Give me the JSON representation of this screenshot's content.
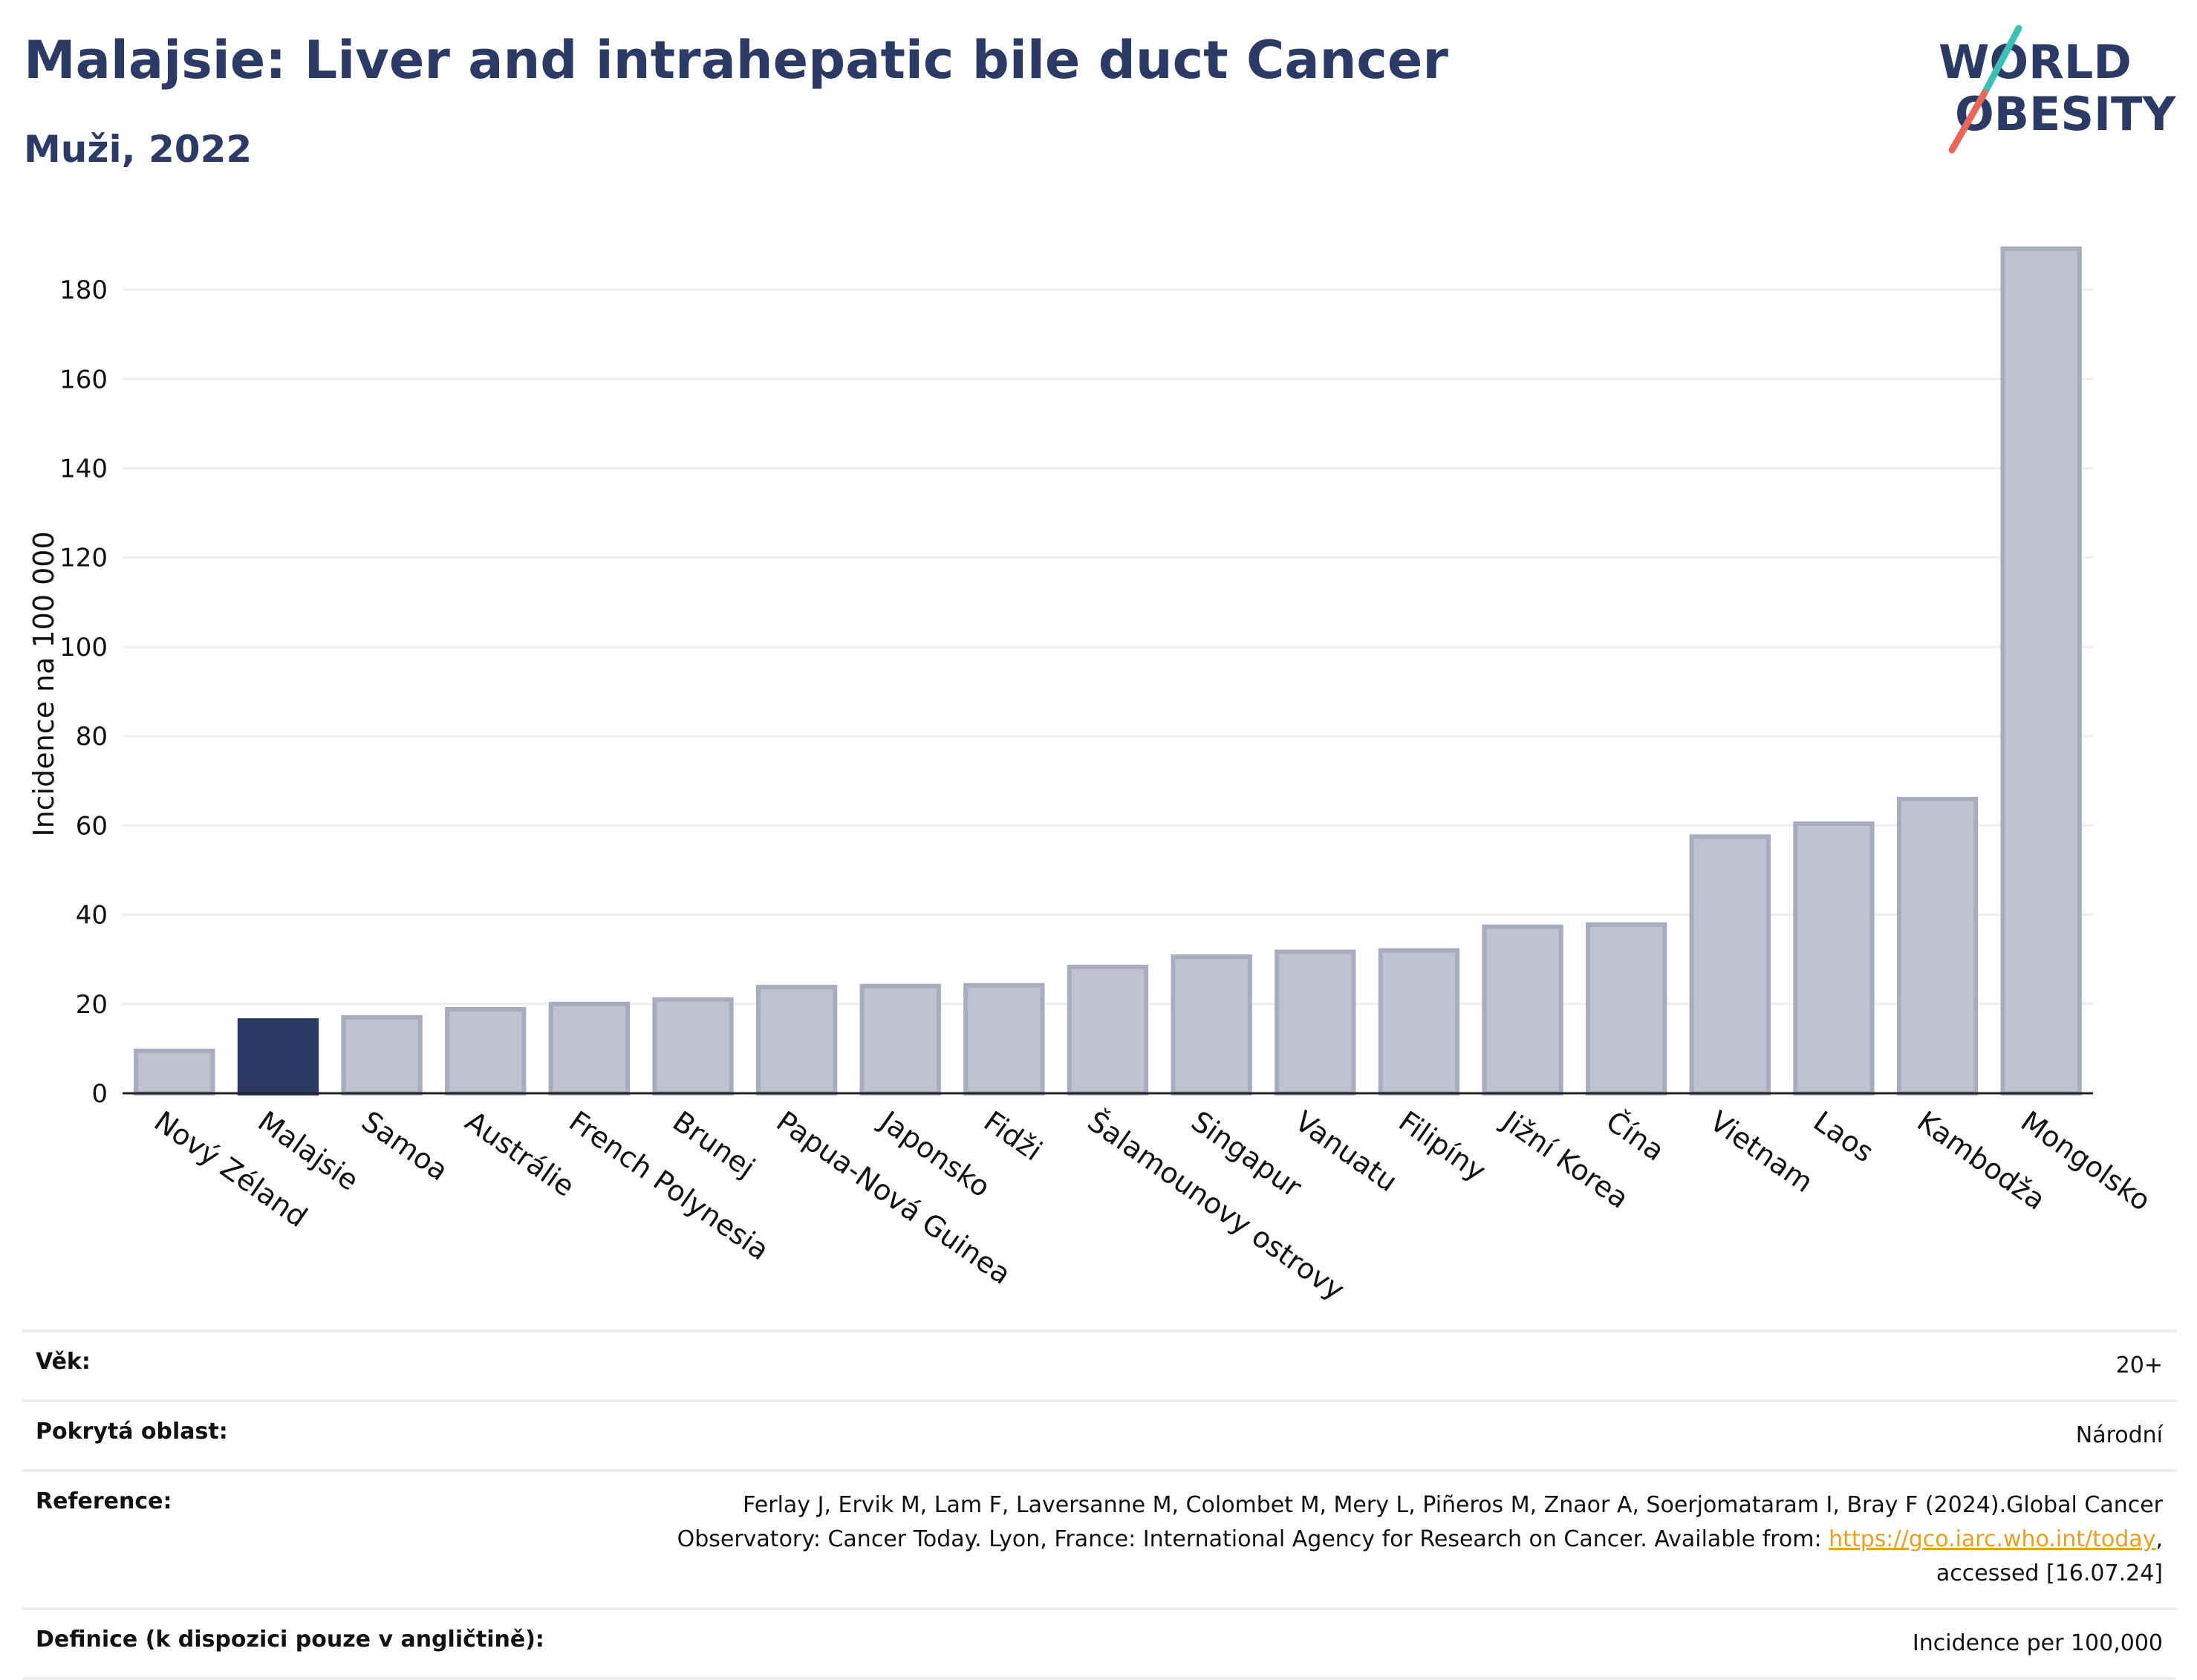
{
  "header": {
    "title": "Malajsie: Liver and intrahepatic bile duct Cancer",
    "subtitle": "Muži, 2022"
  },
  "logo": {
    "line1": "WORLD",
    "line2": "OBESITY",
    "accent_teal": "#3bbfb6",
    "accent_red": "#e8675a",
    "text_color": "#2c3a66"
  },
  "colors": {
    "highlight_bar": "#2c3a66",
    "bar_fill": "#bfc3d0",
    "bar_stroke": "#a7acbf",
    "grid": "#eceef2"
  },
  "chart_data": {
    "type": "bar",
    "title": "Malajsie: Liver and intrahepatic bile duct Cancer",
    "subtitle": "Muži, 2022",
    "ylabel": "Incidence na 100 000",
    "xlabel": "",
    "ylim": [
      0,
      190
    ],
    "yticks": [
      0,
      20,
      40,
      60,
      80,
      100,
      120,
      140,
      160,
      180
    ],
    "grid": true,
    "highlight": "Malajsie",
    "categories": [
      "Nový Zéland",
      "Malajsie",
      "Samoa",
      "Austrálie",
      "French Polynesia",
      "Brunej",
      "Papua-Nová Guinea",
      "Japonsko",
      "Fidži",
      "Šalamounovy ostrovy",
      "Singapur",
      "Vanuatu",
      "Filipíny",
      "Jižní Korea",
      "Čína",
      "Vietnam",
      "Laos",
      "Kambodža",
      "Mongolsko"
    ],
    "values": [
      9.5,
      16.3,
      17.0,
      18.8,
      20.0,
      21.0,
      23.8,
      24.0,
      24.2,
      28.3,
      30.6,
      31.7,
      32.0,
      37.3,
      37.8,
      57.5,
      60.4,
      65.9,
      189.2
    ]
  },
  "meta": {
    "age_label": "Věk:",
    "age_value": "20+",
    "coverage_label": "Pokrytá oblast:",
    "coverage_value": "Národní",
    "reference_label": "Reference:",
    "reference_text_1": "Ferlay J, Ervik M, Lam F, Laversanne M, Colombet M, Mery L, Piñeros M, Znaor A, Soerjomataram I, Bray F (2024).Global Cancer Observatory: Cancer Today. Lyon, France: International Agency for Research on Cancer. Available from: ",
    "reference_link": "https://gco.iarc.who.int/today",
    "reference_text_2": ", accessed [16.07.24]",
    "definition_label": "Definice (k dispozici pouze v angličtině):",
    "definition_value": "Incidence per 100,000"
  }
}
